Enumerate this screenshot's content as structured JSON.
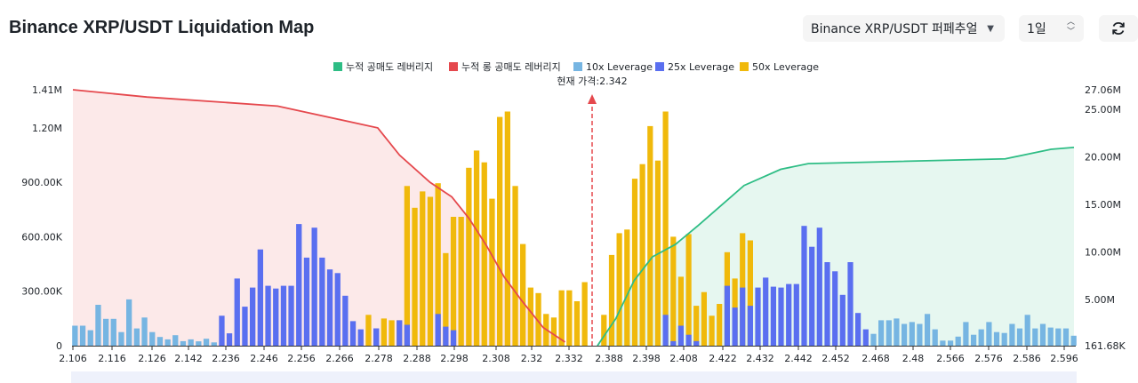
{
  "header": {
    "title": "Binance XRP/USDT Liquidation Map",
    "exchange_select": "Binance XRP/USDT 퍼페추얼",
    "interval_select": "1일",
    "icons": {
      "exchange_caret": "chevron-down-icon",
      "interval_caret": "up-down-icon",
      "refresh": "refresh-icon"
    }
  },
  "chart_data": {
    "type": "bar",
    "current_price_label": "현재 가격:2.342",
    "current_price": 2.342,
    "legend": [
      {
        "name": "누적 공매도 레버리지",
        "color": "#2ebd85"
      },
      {
        "name": "누적 롱 공매도 레버리지",
        "color": "#e5484d"
      },
      {
        "name": "10x Leverage",
        "color": "#76b5e2"
      },
      {
        "name": "25x Leverage",
        "color": "#5a6ff0"
      },
      {
        "name": "50x Leverage",
        "color": "#f0b90b"
      }
    ],
    "left_axis": {
      "ticks": [
        "0",
        "300.00K",
        "600.00K",
        "900.00K",
        "1.20M",
        "1.41M"
      ],
      "max": 1410000
    },
    "right_axis": {
      "ticks": [
        "161.68K",
        "5.00M",
        "10.00M",
        "15.00M",
        "20.00M",
        "25.00M",
        "27.06M"
      ],
      "min": 161680,
      "max": 27060000
    },
    "x_ticks": [
      "2.106",
      "2.116",
      "2.126",
      "2.142",
      "2.236",
      "2.246",
      "2.256",
      "2.266",
      "2.278",
      "2.288",
      "2.298",
      "2.308",
      "2.32",
      "2.332",
      "2.388",
      "2.398",
      "2.408",
      "2.422",
      "2.432",
      "2.442",
      "2.452",
      "2.468",
      "2.48",
      "2.566",
      "2.576",
      "2.586",
      "2.596"
    ],
    "long_bars": [
      {
        "t": "10x",
        "v": 110000
      },
      {
        "t": "10x",
        "v": 110000
      },
      {
        "t": "10x",
        "v": 85000
      },
      {
        "t": "10x",
        "v": 225000
      },
      {
        "t": "10x",
        "v": 148000
      },
      {
        "t": "10x",
        "v": 148000
      },
      {
        "t": "10x",
        "v": 75000
      },
      {
        "t": "10x",
        "v": 255000
      },
      {
        "t": "10x",
        "v": 95000
      },
      {
        "t": "10x",
        "v": 155000
      },
      {
        "t": "10x",
        "v": 75000
      },
      {
        "t": "10x",
        "v": 48000
      },
      {
        "t": "10x",
        "v": 35000
      },
      {
        "t": "10x",
        "v": 58000
      },
      {
        "t": "10x",
        "v": 25000
      },
      {
        "t": "10x",
        "v": 35000
      },
      {
        "t": "10x",
        "v": 24000
      },
      {
        "t": "10x",
        "v": 38000
      },
      {
        "t": "10x",
        "v": 18000
      },
      {
        "t": "25x",
        "v": 165000
      },
      {
        "t": "25x",
        "v": 68000
      },
      {
        "t": "25x",
        "v": 370000
      },
      {
        "t": "25x",
        "v": 215000
      },
      {
        "t": "25x",
        "v": 320000
      },
      {
        "t": "25x",
        "v": 530000
      },
      {
        "t": "25x",
        "v": 330000
      },
      {
        "t": "25x",
        "v": 315000
      },
      {
        "t": "25x",
        "v": 330000
      },
      {
        "t": "25x",
        "v": 330000
      },
      {
        "t": "25x",
        "v": 670000
      },
      {
        "t": "25x",
        "v": 485000
      },
      {
        "t": "25x",
        "v": 650000
      },
      {
        "t": "25x",
        "v": 485000
      },
      {
        "t": "25x",
        "v": 420000
      },
      {
        "t": "25x",
        "v": 400000
      },
      {
        "t": "25x",
        "v": 275000
      },
      {
        "t": "25x",
        "v": 135000
      },
      {
        "t": "25x",
        "v": 90000
      },
      {
        "t": "50x",
        "v": 170000
      },
      {
        "t": "25x",
        "v": 95000
      },
      {
        "t": "50x",
        "v": 150000
      },
      {
        "t": "50x",
        "v": 140000
      },
      {
        "t": "50x",
        "v": 140000
      },
      {
        "t": "50x",
        "v": 880000
      },
      {
        "t": "50x",
        "v": 760000
      },
      {
        "t": "50x",
        "v": 850000
      },
      {
        "t": "50x",
        "v": 820000
      },
      {
        "t": "50x",
        "v": 895000
      },
      {
        "t": "50x",
        "v": 510000
      },
      {
        "t": "50x",
        "v": 710000
      },
      {
        "t": "50x",
        "v": 710000
      },
      {
        "t": "50x",
        "v": 980000
      },
      {
        "t": "50x",
        "v": 1075000
      },
      {
        "t": "50x",
        "v": 1010000
      },
      {
        "t": "50x",
        "v": 810000
      },
      {
        "t": "50x",
        "v": 1260000
      },
      {
        "t": "50x",
        "v": 1290000
      },
      {
        "t": "50x",
        "v": 880000
      },
      {
        "t": "50x",
        "v": 560000
      },
      {
        "t": "50x",
        "v": 320000
      },
      {
        "t": "50x",
        "v": 290000
      },
      {
        "t": "50x",
        "v": 175000
      },
      {
        "t": "50x",
        "v": 155000
      },
      {
        "t": "50x",
        "v": 305000
      },
      {
        "t": "50x",
        "v": 305000
      },
      {
        "t": "50x",
        "v": 245000
      },
      {
        "t": "50x",
        "v": 350000
      }
    ],
    "long_overlay": [
      {
        "i": 39,
        "t": "25x",
        "v": 95000
      },
      {
        "i": 42,
        "t": "25x",
        "v": 140000
      },
      {
        "i": 43,
        "t": "25x",
        "v": 115000
      },
      {
        "i": 47,
        "t": "25x",
        "v": 175000
      },
      {
        "i": 48,
        "t": "25x",
        "v": 105000
      },
      {
        "i": 49,
        "t": "25x",
        "v": 85000
      }
    ],
    "short_bars": [
      {
        "t": "50x",
        "v": 170000
      },
      {
        "t": "50x",
        "v": 500000
      },
      {
        "t": "50x",
        "v": 620000
      },
      {
        "t": "50x",
        "v": 640000
      },
      {
        "t": "50x",
        "v": 920000
      },
      {
        "t": "50x",
        "v": 1000000
      },
      {
        "t": "50x",
        "v": 1210000
      },
      {
        "t": "50x",
        "v": 1020000
      },
      {
        "t": "50x",
        "v": 1290000
      },
      {
        "t": "50x",
        "v": 600000
      },
      {
        "t": "50x",
        "v": 380000
      },
      {
        "t": "50x",
        "v": 615000
      },
      {
        "t": "50x",
        "v": 220000
      },
      {
        "t": "50x",
        "v": 295000
      },
      {
        "t": "50x",
        "v": 165000
      },
      {
        "t": "50x",
        "v": 230000
      },
      {
        "t": "50x",
        "v": 515000
      },
      {
        "t": "50x",
        "v": 370000
      },
      {
        "t": "50x",
        "v": 620000
      },
      {
        "t": "50x",
        "v": 580000
      },
      {
        "t": "25x",
        "v": 320000
      },
      {
        "t": "25x",
        "v": 375000
      },
      {
        "t": "25x",
        "v": 325000
      },
      {
        "t": "25x",
        "v": 320000
      },
      {
        "t": "25x",
        "v": 340000
      },
      {
        "t": "25x",
        "v": 340000
      },
      {
        "t": "25x",
        "v": 660000
      },
      {
        "t": "25x",
        "v": 545000
      },
      {
        "t": "25x",
        "v": 650000
      },
      {
        "t": "25x",
        "v": 460000
      },
      {
        "t": "25x",
        "v": 410000
      },
      {
        "t": "25x",
        "v": 280000
      },
      {
        "t": "25x",
        "v": 460000
      },
      {
        "t": "25x",
        "v": 180000
      },
      {
        "t": "25x",
        "v": 90000
      },
      {
        "t": "10x",
        "v": 65000
      },
      {
        "t": "10x",
        "v": 140000
      },
      {
        "t": "10x",
        "v": 140000
      },
      {
        "t": "10x",
        "v": 150000
      },
      {
        "t": "10x",
        "v": 120000
      },
      {
        "t": "10x",
        "v": 130000
      },
      {
        "t": "10x",
        "v": 120000
      },
      {
        "t": "10x",
        "v": 175000
      },
      {
        "t": "10x",
        "v": 90000
      },
      {
        "t": "10x",
        "v": 28000
      },
      {
        "t": "10x",
        "v": 28000
      },
      {
        "t": "10x",
        "v": 50000
      },
      {
        "t": "10x",
        "v": 130000
      },
      {
        "t": "10x",
        "v": 60000
      },
      {
        "t": "10x",
        "v": 90000
      },
      {
        "t": "10x",
        "v": 130000
      },
      {
        "t": "10x",
        "v": 75000
      },
      {
        "t": "10x",
        "v": 70000
      },
      {
        "t": "10x",
        "v": 120000
      },
      {
        "t": "10x",
        "v": 95000
      },
      {
        "t": "10x",
        "v": 170000
      },
      {
        "t": "10x",
        "v": 95000
      },
      {
        "t": "10x",
        "v": 120000
      },
      {
        "t": "10x",
        "v": 100000
      },
      {
        "t": "10x",
        "v": 95000
      },
      {
        "t": "10x",
        "v": 95000
      },
      {
        "t": "10x",
        "v": 55000
      }
    ],
    "short_overlay": [
      {
        "i": 8,
        "t": "25x",
        "v": 170000
      },
      {
        "i": 9,
        "t": "25x",
        "v": 25000
      },
      {
        "i": 10,
        "t": "25x",
        "v": 110000
      },
      {
        "i": 11,
        "t": "25x",
        "v": 60000
      },
      {
        "i": 12,
        "t": "25x",
        "v": 25000
      },
      {
        "i": 16,
        "t": "25x",
        "v": 330000
      },
      {
        "i": 17,
        "t": "25x",
        "v": 210000
      },
      {
        "i": 18,
        "t": "25x",
        "v": 320000
      },
      {
        "i": 19,
        "t": "25x",
        "v": 220000
      }
    ],
    "cum_long": [
      [
        2.106,
        1.41
      ],
      [
        2.14,
        1.37
      ],
      [
        2.2,
        1.32
      ],
      [
        2.246,
        1.2
      ],
      [
        2.256,
        1.05
      ],
      [
        2.27,
        0.9
      ],
      [
        2.28,
        0.82
      ],
      [
        2.288,
        0.7
      ],
      [
        2.296,
        0.55
      ],
      [
        2.304,
        0.38
      ],
      [
        2.312,
        0.25
      ],
      [
        2.322,
        0.1
      ],
      [
        2.332,
        0.02
      ]
    ],
    "cum_short": [
      [
        2.388,
        0.161
      ],
      [
        2.396,
        3.0
      ],
      [
        2.404,
        7.0
      ],
      [
        2.412,
        9.5
      ],
      [
        2.422,
        10.8
      ],
      [
        2.432,
        12.8
      ],
      [
        2.442,
        14.9
      ],
      [
        2.452,
        17.0
      ],
      [
        2.468,
        18.7
      ],
      [
        2.48,
        19.3
      ],
      [
        2.566,
        19.8
      ],
      [
        2.576,
        20.3
      ],
      [
        2.586,
        20.8
      ],
      [
        2.596,
        21.0
      ]
    ]
  }
}
